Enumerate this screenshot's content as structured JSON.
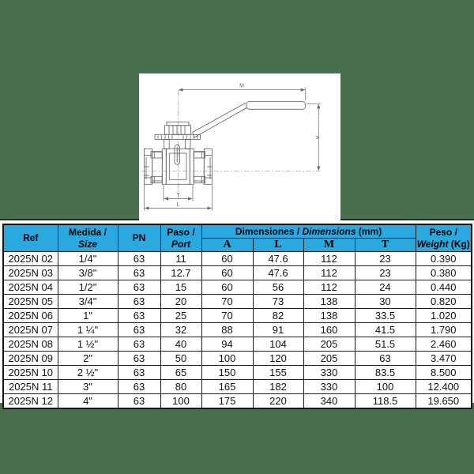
{
  "page": {
    "background_color": "#48704e",
    "panel_color": "#ffffff",
    "header_blue": "#2aa9e0"
  },
  "drawing": {
    "dimension_labels": {
      "m": "M",
      "a": "A",
      "t": "T",
      "l": "L"
    }
  },
  "table": {
    "header": {
      "ref": "Ref",
      "medida_line1": "Medida /",
      "medida_line2": "Size",
      "pn": "PN",
      "paso_line1": "Paso /",
      "paso_line2": "Port",
      "dim_plain": "Dimensiones / ",
      "dim_italic": "Dimensions",
      "dim_unit": " (mm)",
      "dim_cols": [
        "A",
        "L",
        "M",
        "T"
      ],
      "peso_line1": "Peso /",
      "peso_line2_italic": "Weight",
      "peso_unit": " (Kg)"
    },
    "rows": [
      {
        "ref": "2025N 02",
        "size": "1/4\"",
        "pn": "63",
        "port": "11",
        "a": "60",
        "l": "47.6",
        "m": "112",
        "t": "23",
        "weight": "0.390"
      },
      {
        "ref": "2025N 03",
        "size": "3/8\"",
        "pn": "63",
        "port": "12.7",
        "a": "60",
        "l": "47.6",
        "m": "112",
        "t": "23",
        "weight": "0.380"
      },
      {
        "ref": "2025N 04",
        "size": "1/2\"",
        "pn": "63",
        "port": "15",
        "a": "60",
        "l": "56",
        "m": "112",
        "t": "24",
        "weight": "0.440"
      },
      {
        "ref": "2025N 05",
        "size": "3/4\"",
        "pn": "63",
        "port": "20",
        "a": "70",
        "l": "73",
        "m": "138",
        "t": "30",
        "weight": "0.820"
      },
      {
        "ref": "2025N 06",
        "size": "1\"",
        "pn": "63",
        "port": "25",
        "a": "70",
        "l": "82",
        "m": "138",
        "t": "33.5",
        "weight": "1.020"
      },
      {
        "ref": "2025N 07",
        "size": "1 ¼\"",
        "pn": "63",
        "port": "32",
        "a": "88",
        "l": "91",
        "m": "160",
        "t": "41.5",
        "weight": "1.790"
      },
      {
        "ref": "2025N 08",
        "size": "1 ½\"",
        "pn": "63",
        "port": "40",
        "a": "94",
        "l": "104",
        "m": "205",
        "t": "51.5",
        "weight": "2.460"
      },
      {
        "ref": "2025N 09",
        "size": "2\"",
        "pn": "63",
        "port": "50",
        "a": "100",
        "l": "120",
        "m": "205",
        "t": "63",
        "weight": "3.470"
      },
      {
        "ref": "2025N 10",
        "size": "2 ½\"",
        "pn": "63",
        "port": "65",
        "a": "150",
        "l": "155",
        "m": "330",
        "t": "83.5",
        "weight": "8.500"
      },
      {
        "ref": "2025N 11",
        "size": "3\"",
        "pn": "63",
        "port": "80",
        "a": "165",
        "l": "182",
        "m": "330",
        "t": "100",
        "weight": "12.400"
      },
      {
        "ref": "2025N 12",
        "size": "4\"",
        "pn": "63",
        "port": "100",
        "a": "175",
        "l": "220",
        "m": "340",
        "t": "118.5",
        "weight": "19.650"
      }
    ]
  }
}
